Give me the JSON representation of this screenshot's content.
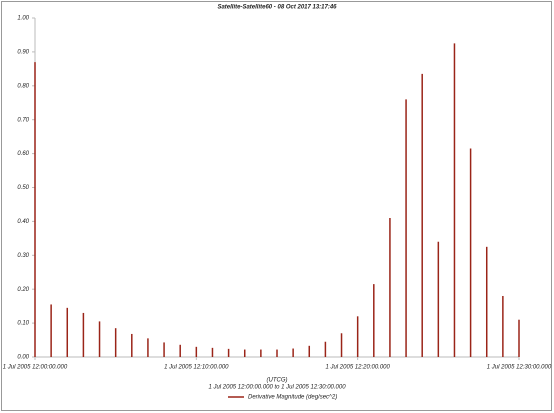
{
  "chart_data": {
    "type": "spike",
    "title": "Satellite-Satellite60 - 08 Oct 2017 13:17:46",
    "x_unit": "(UTCG)",
    "subtitle": "1 Jul 2005 12:00:00.000  to  1 Jul 2005 12:30:00.000",
    "x": [
      "2005-07-01T12:00:00",
      "2005-07-01T12:01:00",
      "2005-07-01T12:02:00",
      "2005-07-01T12:03:00",
      "2005-07-01T12:04:00",
      "2005-07-01T12:05:00",
      "2005-07-01T12:06:00",
      "2005-07-01T12:07:00",
      "2005-07-01T12:08:00",
      "2005-07-01T12:09:00",
      "2005-07-01T12:10:00",
      "2005-07-01T12:11:00",
      "2005-07-01T12:12:00",
      "2005-07-01T12:13:00",
      "2005-07-01T12:14:00",
      "2005-07-01T12:15:00",
      "2005-07-01T12:16:00",
      "2005-07-01T12:17:00",
      "2005-07-01T12:18:00",
      "2005-07-01T12:19:00",
      "2005-07-01T12:20:00",
      "2005-07-01T12:21:00",
      "2005-07-01T12:22:00",
      "2005-07-01T12:23:00",
      "2005-07-01T12:24:00",
      "2005-07-01T12:25:00",
      "2005-07-01T12:26:00",
      "2005-07-01T12:27:00",
      "2005-07-01T12:28:00",
      "2005-07-01T12:29:00",
      "2005-07-01T12:30:00"
    ],
    "series": [
      {
        "name": "Derivative Magnitude (deg/sec^2)",
        "color": "#9a2418",
        "values": [
          0.87,
          0.155,
          0.145,
          0.13,
          0.105,
          0.085,
          0.068,
          0.055,
          0.043,
          0.036,
          0.03,
          0.027,
          0.024,
          0.022,
          0.022,
          0.022,
          0.025,
          0.033,
          0.045,
          0.07,
          0.12,
          0.215,
          0.41,
          0.76,
          0.835,
          0.34,
          0.925,
          0.615,
          0.325,
          0.18,
          0.11
        ]
      }
    ],
    "xlim": [
      "2005-07-01T12:00:00",
      "2005-07-01T12:30:00"
    ],
    "xticks": [
      {
        "value": "2005-07-01T12:00:00",
        "label": "1 Jul 2005 12:00:00.000"
      },
      {
        "value": "2005-07-01T12:10:00",
        "label": "1 Jul 2005 12:10:00.000"
      },
      {
        "value": "2005-07-01T12:20:00",
        "label": "1 Jul 2005 12:20:00.000"
      },
      {
        "value": "2005-07-01T12:30:00",
        "label": "1 Jul 2005 12:30:00.000"
      }
    ],
    "ylim": [
      0,
      1
    ],
    "yticks": [
      {
        "value": 0,
        "label": "0.00"
      },
      {
        "value": 0.1,
        "label": "0.10"
      },
      {
        "value": 0.2,
        "label": "0.20"
      },
      {
        "value": 0.3,
        "label": "0.30"
      },
      {
        "value": 0.4,
        "label": "0.40"
      },
      {
        "value": 0.5,
        "label": "0.50"
      },
      {
        "value": 0.6,
        "label": "0.60"
      },
      {
        "value": 0.7,
        "label": "0.70"
      },
      {
        "value": 0.8,
        "label": "0.80"
      },
      {
        "value": 0.9,
        "label": "0.90"
      },
      {
        "value": 1,
        "label": "1.00"
      }
    ],
    "grid": false
  }
}
